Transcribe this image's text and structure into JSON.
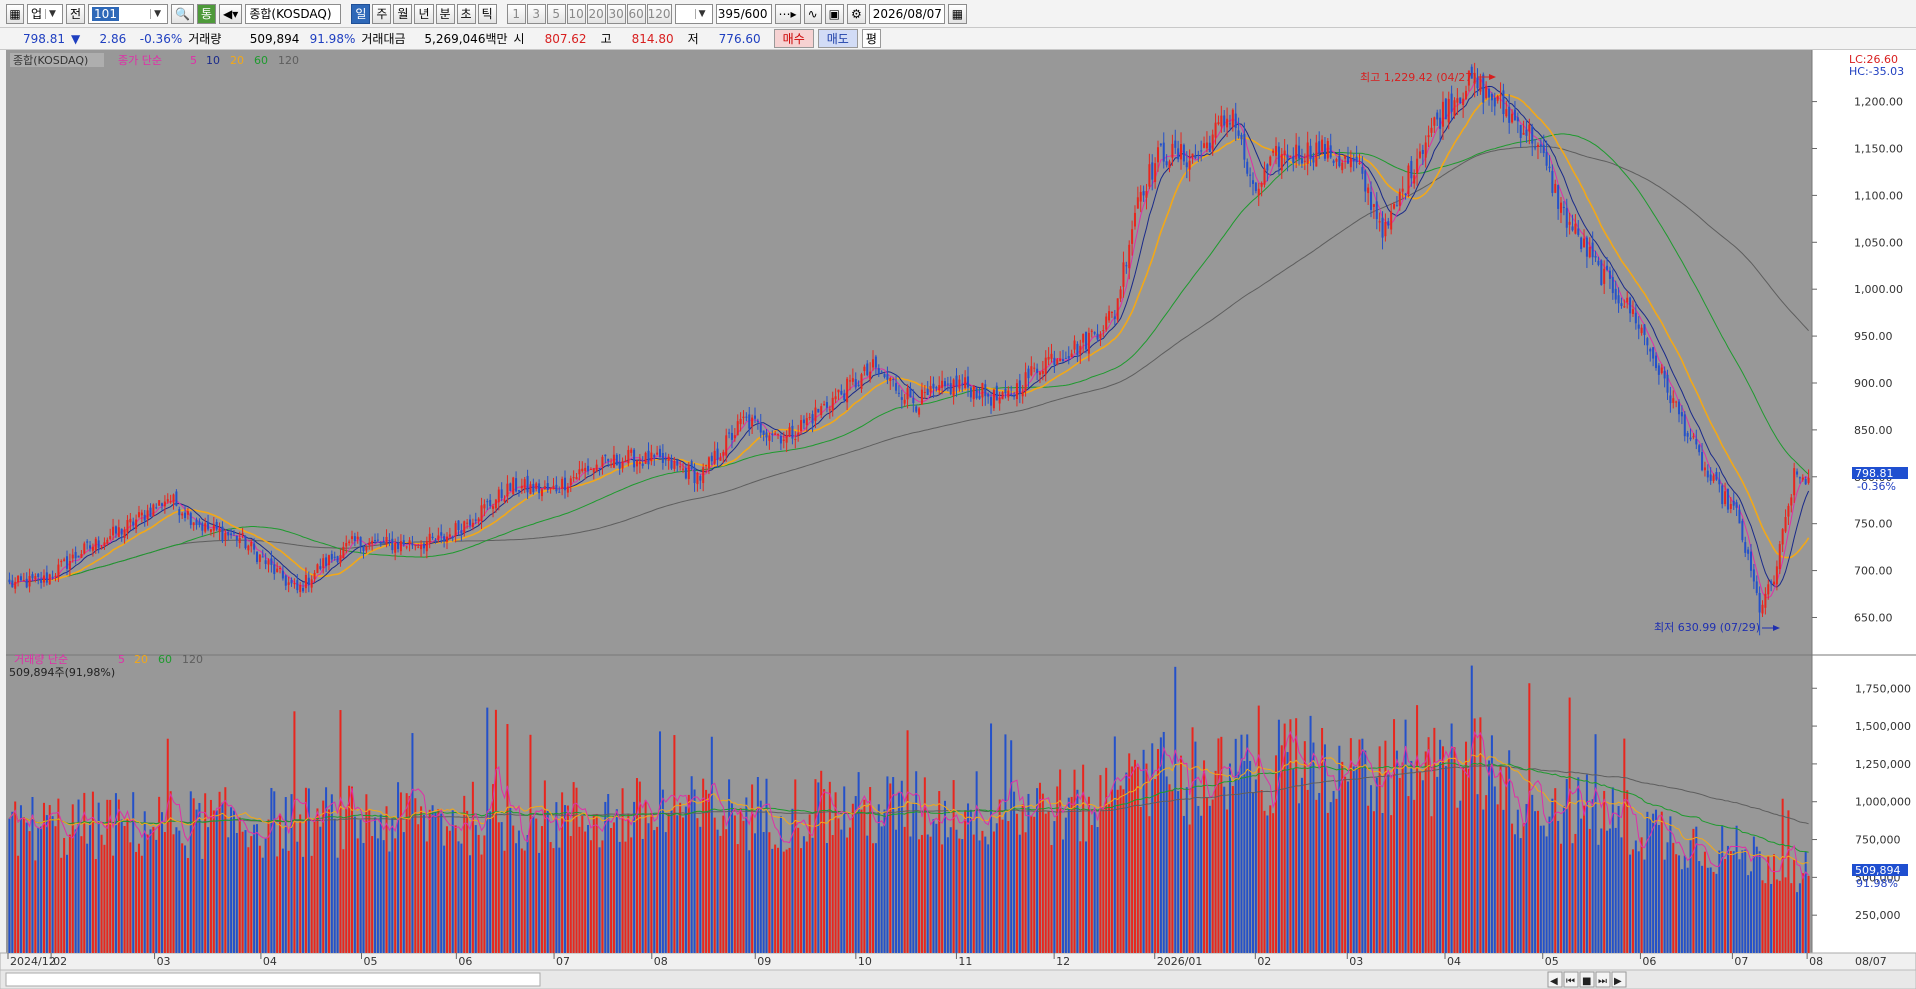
{
  "toolbar": {
    "market_sel": "업",
    "kind_btn": "전",
    "code_value": "101",
    "index_name": "종합(KOSDAQ)",
    "periods": [
      "일",
      "주",
      "월",
      "년",
      "분",
      "초",
      "틱"
    ],
    "active_period": "일",
    "intervals": [
      "1",
      "3",
      "5",
      "10",
      "20",
      "30",
      "60",
      "120"
    ],
    "count": "395",
    "count_max": "/600",
    "date": "2026/08/07",
    "more_btn": "통"
  },
  "quote": {
    "price": "798.81",
    "arrow": "▼",
    "change": "2.86",
    "change_pct": "-0.36%",
    "vol_label": "거래량",
    "vol": "509,894",
    "vol_ratio": "91.98%",
    "amount_label": "거래대금",
    "amount": "5,269,046백만",
    "open_label": "시",
    "open": "807.62",
    "high_label": "고",
    "high": "814.80",
    "low_label": "저",
    "low": "776.60",
    "buy": "매수",
    "sell": "매도",
    "eval": "평"
  },
  "colors": {
    "up": "#e8261e",
    "down": "#2451c9",
    "ma5": "#e02ea8",
    "ma10": "#1a2a8a",
    "ma20": "#f2a818",
    "ma60": "#1e9a2e",
    "ma120": "#5e5e5e",
    "panel": "#989898"
  },
  "chart_data": [
    {
      "type": "candlestick",
      "title": "종합(KOSDAQ)",
      "legend": {
        "prefix": "종가 단순",
        "periods": [
          "5",
          "10",
          "20",
          "60",
          "120"
        ]
      },
      "ylim": [
        610,
        1255
      ],
      "yticks": [
        "650.00",
        "700.00",
        "750.00",
        "800.00",
        "850.00",
        "900.00",
        "950.00",
        "1,000.00",
        "1,050.00",
        "1,100.00",
        "1,150.00",
        "1,200.00"
      ],
      "ytick_values": [
        650,
        700,
        750,
        800,
        850,
        900,
        950,
        1000,
        1050,
        1100,
        1150,
        1200
      ],
      "lc": "LC:26.60",
      "hc": "HC:-35.03",
      "last": {
        "price": "798.81",
        "pct": "-0.36%"
      },
      "max_note": "최고 1,229.42 (04/27)",
      "min_note": "최저 630.99 (07/29)",
      "high_value": 1229.42,
      "low_value": 630.99,
      "anchors": [
        [
          0,
          685
        ],
        [
          12,
          690
        ],
        [
          25,
          720
        ],
        [
          40,
          745
        ],
        [
          55,
          778
        ],
        [
          68,
          745
        ],
        [
          80,
          735
        ],
        [
          92,
          700
        ],
        [
          100,
          678
        ],
        [
          108,
          705
        ],
        [
          120,
          730
        ],
        [
          135,
          728
        ],
        [
          150,
          732
        ],
        [
          162,
          760
        ],
        [
          175,
          790
        ],
        [
          188,
          785
        ],
        [
          200,
          808
        ],
        [
          215,
          820
        ],
        [
          228,
          815
        ],
        [
          240,
          800
        ],
        [
          255,
          860
        ],
        [
          270,
          842
        ],
        [
          285,
          880
        ],
        [
          300,
          915
        ],
        [
          315,
          880
        ],
        [
          330,
          900
        ],
        [
          345,
          880
        ],
        [
          360,
          925
        ],
        [
          372,
          940
        ],
        [
          384,
          975
        ],
        [
          392,
          1100
        ],
        [
          400,
          1145
        ],
        [
          412,
          1140
        ],
        [
          425,
          1190
        ],
        [
          432,
          1100
        ],
        [
          440,
          1140
        ],
        [
          455,
          1150
        ],
        [
          468,
          1130
        ],
        [
          478,
          1060
        ],
        [
          490,
          1150
        ],
        [
          500,
          1200
        ],
        [
          508,
          1222
        ],
        [
          518,
          1195
        ],
        [
          530,
          1160
        ],
        [
          540,
          1080
        ],
        [
          552,
          1020
        ],
        [
          565,
          970
        ],
        [
          575,
          900
        ],
        [
          590,
          800
        ],
        [
          600,
          760
        ],
        [
          608,
          660
        ],
        [
          613,
          690
        ],
        [
          620,
          800
        ],
        [
          625,
          798.81
        ]
      ]
    },
    {
      "type": "bar",
      "title": "거래량",
      "legend": {
        "prefix": "거래량 단순",
        "periods": [
          "5",
          "20",
          "60",
          "120"
        ]
      },
      "current": "509,894주(91,98%)",
      "ylim": [
        0,
        1950000
      ],
      "yticks": [
        "250,000",
        "500,000",
        "750,000",
        "1,000,000",
        "1,250,000",
        "1,500,000",
        "1,750,000"
      ],
      "ytick_values": [
        250000,
        500000,
        750000,
        1000000,
        1250000,
        1500000,
        1750000
      ],
      "last": {
        "value": "509,894",
        "pct": "91.98%"
      }
    }
  ],
  "xaxis": {
    "labels": [
      "2024/12",
      "02",
      "03",
      "04",
      "05",
      "06",
      "07",
      "08",
      "09",
      "10",
      "11",
      "12",
      "2026/01",
      "02",
      "03",
      "04",
      "05",
      "06",
      "07",
      "08"
    ],
    "right": "08/07"
  }
}
